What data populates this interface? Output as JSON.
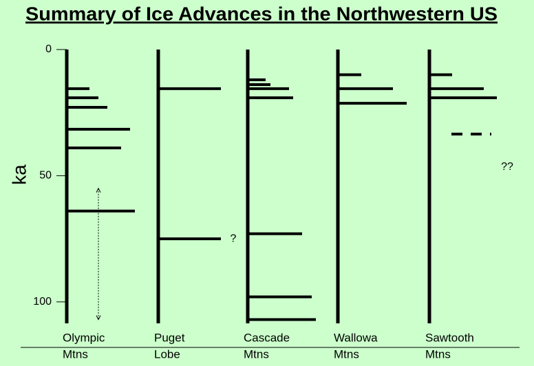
{
  "chart_data": {
    "type": "timeline",
    "title": "Summary of Ice Advances in the Northwestern US",
    "y_label": "ka",
    "ylim": [
      0,
      108.5
    ],
    "yticks": [
      0,
      50,
      100
    ],
    "columns": [
      {
        "label": [
          "Olympic",
          "Mtns"
        ],
        "advances": [
          15.5,
          19.1,
          22.9,
          31.6,
          39,
          64
        ],
        "range": [
          55,
          107
        ]
      },
      {
        "label": [
          "Puget",
          "Lobe"
        ],
        "advances": [
          15.5,
          75
        ],
        "note": "?"
      },
      {
        "label": [
          "Cascade",
          "Mtns"
        ],
        "advances": [
          12,
          13.9,
          15.5,
          19.1,
          73,
          98,
          107
        ]
      },
      {
        "label": [
          "Wallowa",
          "Mtns"
        ],
        "advances": [
          10,
          15.5,
          21.3
        ]
      },
      {
        "label": [
          "Sawtooth",
          "Mtns"
        ],
        "advances": [
          10,
          15.5,
          19.1
        ],
        "uncertain": [
          33.5
        ],
        "note": "??"
      }
    ]
  }
}
